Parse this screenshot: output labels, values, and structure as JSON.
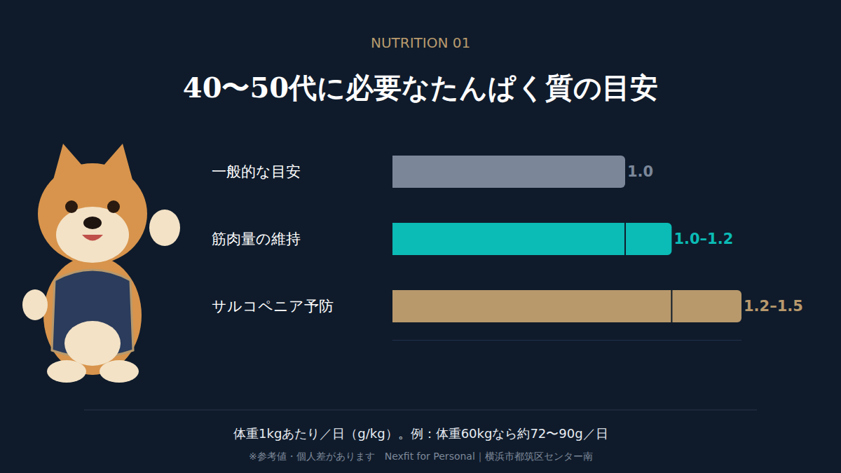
{
  "chart_data": {
    "type": "bar",
    "orientation": "horizontal",
    "subtitle": "NUTRITION 01",
    "title": "40〜50代に必要なたんぱく質の目安",
    "categories": [
      "一般的な目安",
      "筋肉量の維持",
      "サルコペニア予防"
    ],
    "values": [
      1.0,
      1.2,
      1.5
    ],
    "range_start": [
      1.0,
      1.0,
      1.2
    ],
    "value_labels": [
      "1.0",
      "1.0–1.2",
      "1.2–1.5"
    ],
    "colors": [
      "#7b8799",
      "#0bbbb5",
      "#b8996c"
    ],
    "data_labels": true,
    "xlim": [
      0,
      1.5
    ],
    "xticks": [],
    "tick_labels": "y",
    "grid": false,
    "annotations": [
      "体重1kgあたり／日（g/kg）。例：体重60kgなら約72〜90g／日",
      "※参考値・個人差があります　Nexfit for Personal｜横浜市都筑区センター南"
    ]
  }
}
